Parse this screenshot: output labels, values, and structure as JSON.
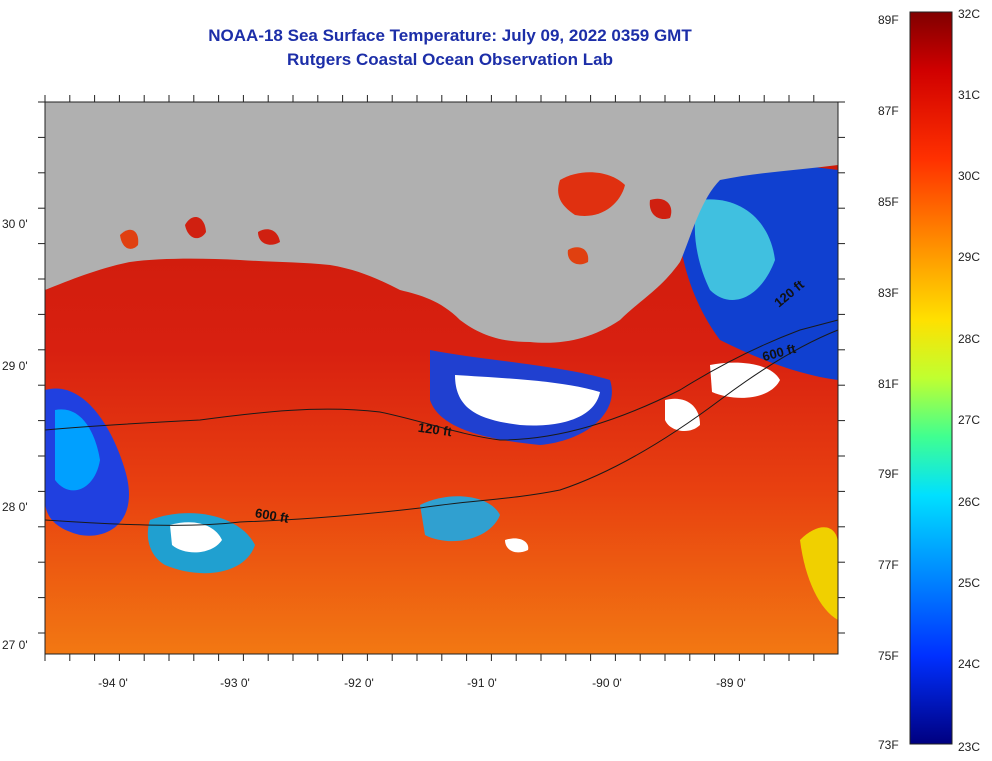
{
  "title_line1": "NOAA-18 Sea Surface Temperature:  July 09, 2022 0359 GMT",
  "title_line2": "Rutgers Coastal Ocean Observation Lab",
  "lat_labels": [
    "30 0'",
    "29 0'",
    "28 0'",
    "27 0'"
  ],
  "lon_labels": [
    "-94 0'",
    "-93 0'",
    "-92 0'",
    "-91 0'",
    "-90 0'",
    "-89 0'"
  ],
  "contour_labels": [
    "120 ft",
    "600 ft",
    "600 ft",
    "120 ft"
  ],
  "colorbar": {
    "fahrenheit": [
      "89F",
      "87F",
      "85F",
      "83F",
      "81F",
      "79F",
      "77F",
      "75F",
      "73F"
    ],
    "celsius": [
      "32C",
      "31C",
      "30C",
      "29C",
      "28C",
      "27C",
      "26C",
      "25C",
      "24C",
      "23C"
    ]
  },
  "colors": {
    "land": "#b0b0b0",
    "title": "#1c2ea8",
    "sea_warm": "#e02010",
    "sea_hot": "#b01008",
    "sea_mild": "#f07010",
    "no_data": "#ffffff"
  }
}
